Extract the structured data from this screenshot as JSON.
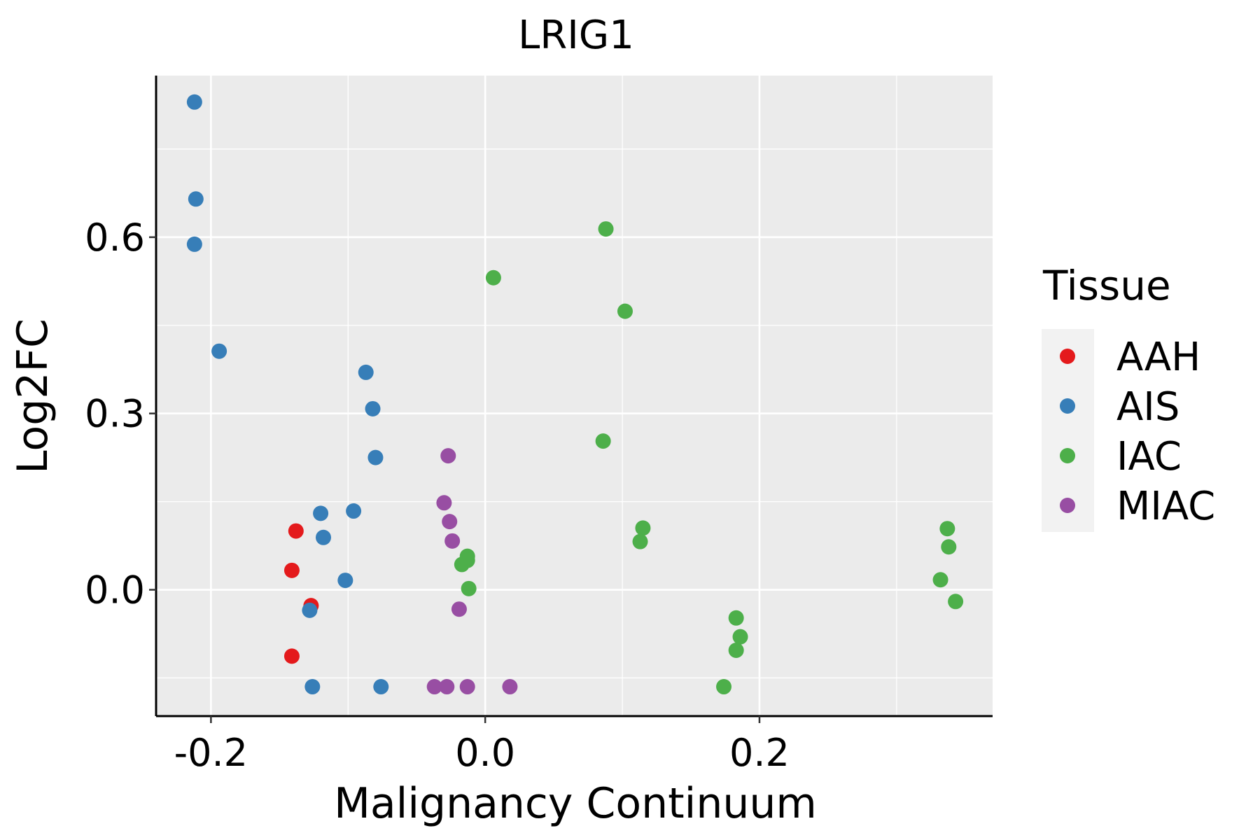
{
  "chart_data": {
    "type": "scatter",
    "title": "LRIG1",
    "xlabel": "Malignancy Continuum",
    "ylabel": "Log2FC",
    "xlim": [
      -0.24,
      0.37
    ],
    "ylim": [
      -0.215,
      0.875
    ],
    "xticks": [
      -0.2,
      0.0,
      0.2
    ],
    "xtick_labels": [
      "-0.2",
      "0.0",
      "0.2"
    ],
    "yticks": [
      0.0,
      0.3,
      0.6
    ],
    "ytick_labels": [
      "0.0",
      "0.3",
      "0.6"
    ],
    "grid": true,
    "legend": {
      "title": "Tissue",
      "position": "right"
    },
    "series": [
      {
        "name": "AAH",
        "color": "#E41A1C",
        "points": [
          {
            "x": -0.138,
            "y": 0.1
          },
          {
            "x": -0.141,
            "y": 0.033
          },
          {
            "x": -0.127,
            "y": -0.027
          },
          {
            "x": -0.141,
            "y": -0.113
          }
        ]
      },
      {
        "name": "AIS",
        "color": "#377EB8",
        "points": [
          {
            "x": -0.212,
            "y": 0.83
          },
          {
            "x": -0.211,
            "y": 0.665
          },
          {
            "x": -0.212,
            "y": 0.588
          },
          {
            "x": -0.194,
            "y": 0.406
          },
          {
            "x": -0.087,
            "y": 0.37
          },
          {
            "x": -0.082,
            "y": 0.308
          },
          {
            "x": -0.08,
            "y": 0.225
          },
          {
            "x": -0.096,
            "y": 0.134
          },
          {
            "x": -0.12,
            "y": 0.13
          },
          {
            "x": -0.118,
            "y": 0.089
          },
          {
            "x": -0.102,
            "y": 0.016
          },
          {
            "x": -0.128,
            "y": -0.035
          },
          {
            "x": -0.126,
            "y": -0.165
          },
          {
            "x": -0.076,
            "y": -0.165
          }
        ]
      },
      {
        "name": "IAC",
        "color": "#4DAF4A",
        "points": [
          {
            "x": 0.088,
            "y": 0.614
          },
          {
            "x": 0.006,
            "y": 0.531
          },
          {
            "x": 0.102,
            "y": 0.474
          },
          {
            "x": 0.086,
            "y": 0.253
          },
          {
            "x": 0.115,
            "y": 0.105
          },
          {
            "x": 0.113,
            "y": 0.082
          },
          {
            "x": -0.013,
            "y": 0.057
          },
          {
            "x": -0.013,
            "y": 0.05
          },
          {
            "x": -0.017,
            "y": 0.043
          },
          {
            "x": -0.012,
            "y": 0.002
          },
          {
            "x": 0.183,
            "y": -0.048
          },
          {
            "x": 0.186,
            "y": -0.08
          },
          {
            "x": 0.183,
            "y": -0.103
          },
          {
            "x": 0.174,
            "y": -0.165
          },
          {
            "x": 0.337,
            "y": 0.104
          },
          {
            "x": 0.338,
            "y": 0.073
          },
          {
            "x": 0.332,
            "y": 0.017
          },
          {
            "x": 0.343,
            "y": -0.02
          }
        ]
      },
      {
        "name": "MIAC",
        "color": "#984EA3",
        "points": [
          {
            "x": -0.027,
            "y": 0.228
          },
          {
            "x": -0.03,
            "y": 0.148
          },
          {
            "x": -0.026,
            "y": 0.116
          },
          {
            "x": -0.024,
            "y": 0.083
          },
          {
            "x": -0.019,
            "y": -0.033
          },
          {
            "x": -0.037,
            "y": -0.165
          },
          {
            "x": -0.028,
            "y": -0.165
          },
          {
            "x": -0.013,
            "y": -0.165
          },
          {
            "x": 0.018,
            "y": -0.165
          }
        ]
      }
    ]
  }
}
